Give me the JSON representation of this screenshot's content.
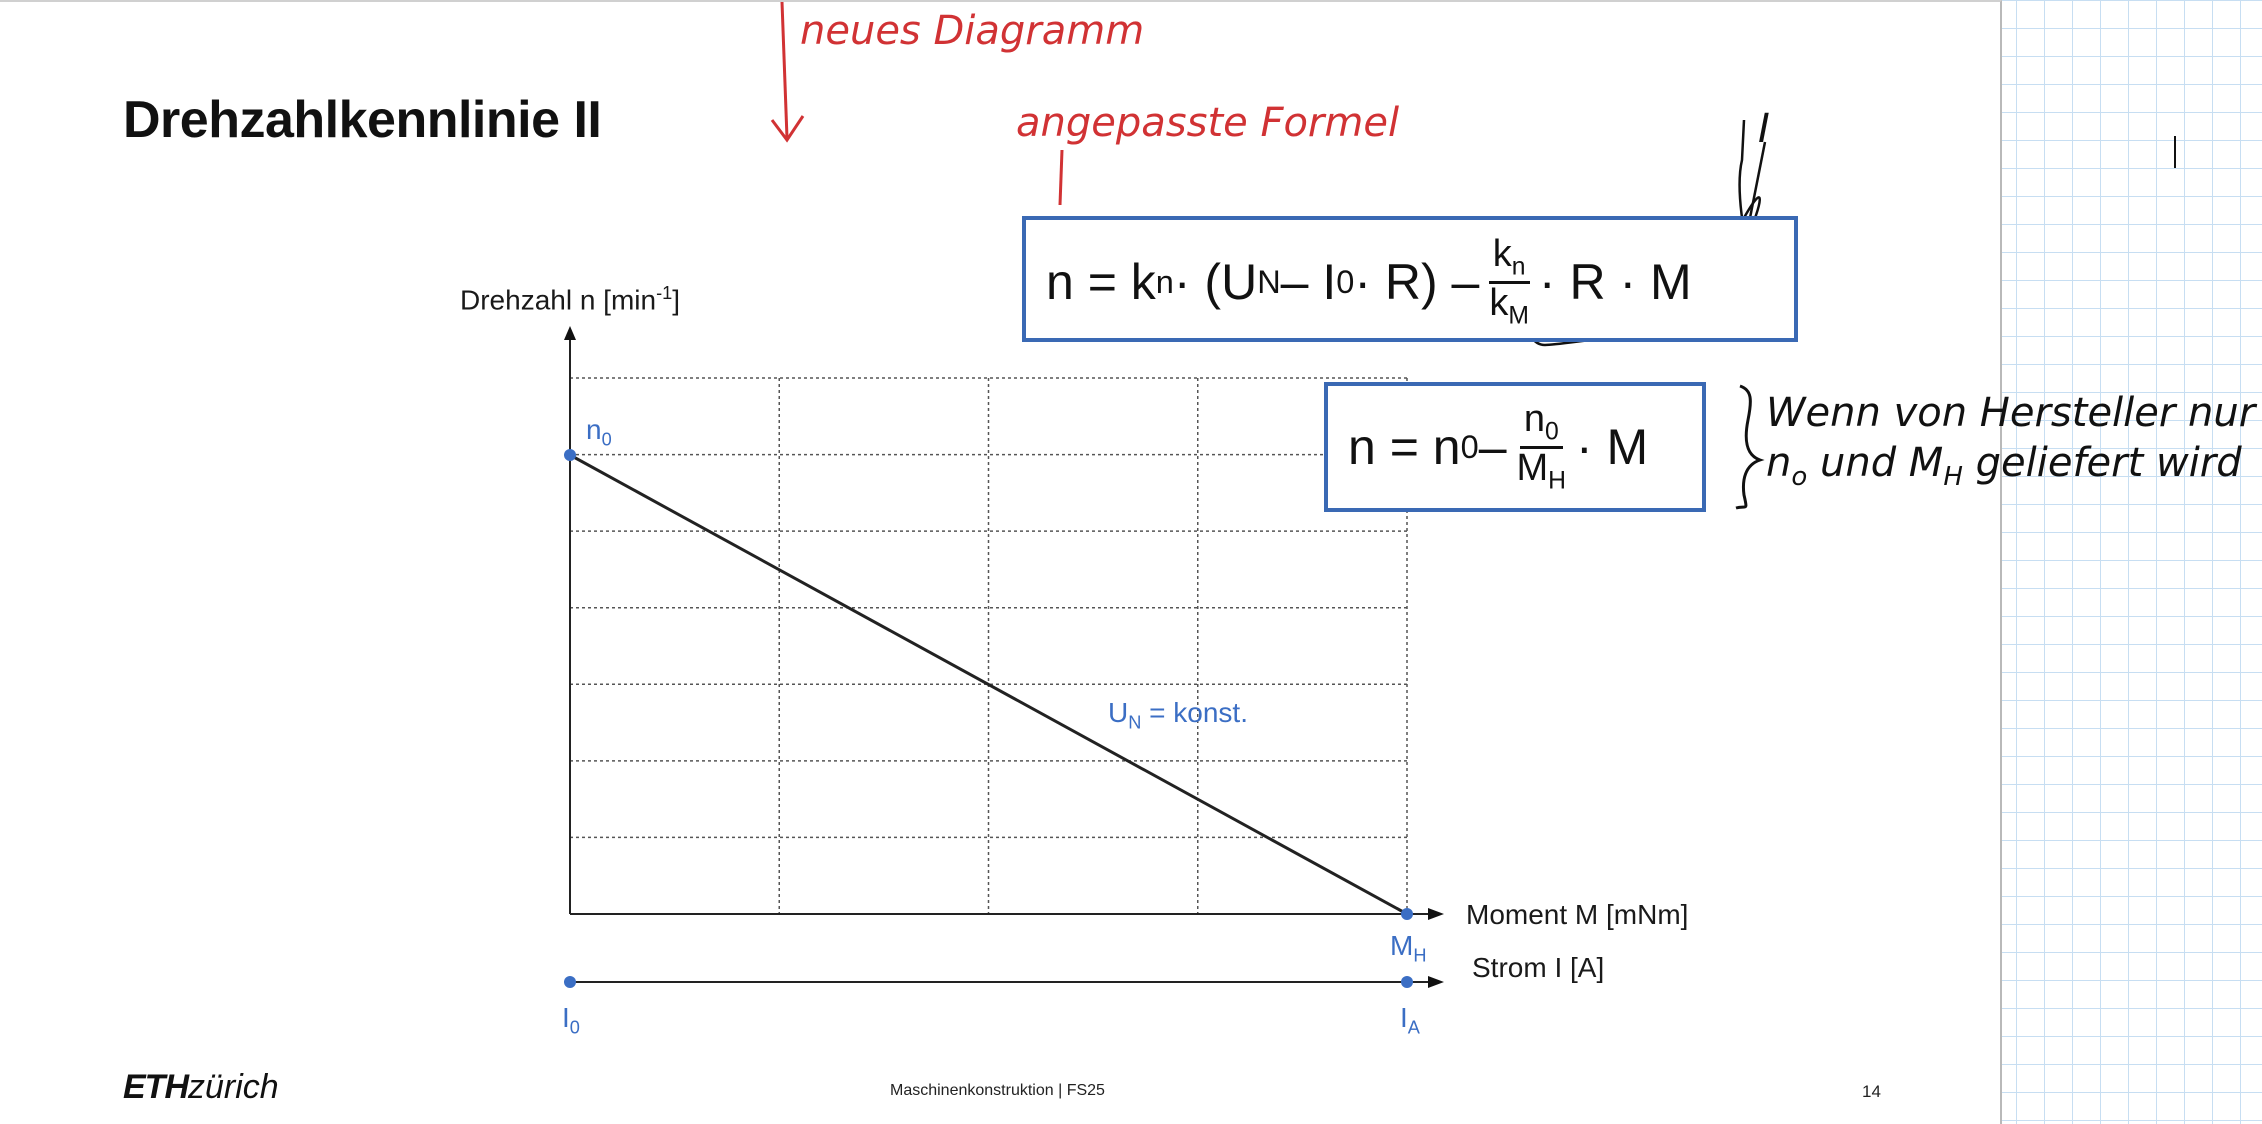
{
  "slide": {
    "title": "Drehzahlkennlinie II",
    "footer_logo_bold": "ETH",
    "footer_logo_rest": "zürich",
    "footer_course": "Maschinenkonstruktion | FS25",
    "page_number": "14"
  },
  "chart": {
    "y_axis_label": "Drehzahl n [min",
    "y_axis_label_sup": "-1",
    "y_axis_label_end": "]",
    "x_axis_label": "Moment M [mNm]",
    "x2_axis_label": "Strom I [A]",
    "n0_label": "n",
    "n0_sub": "0",
    "mh_label": "M",
    "mh_sub": "H",
    "i0_label": "I",
    "i0_sub": "0",
    "ia_label": "I",
    "ia_sub": "A",
    "line_label": "U",
    "line_label_sub": "N",
    "line_label_rest": " = konst.",
    "colors": {
      "line": "#222222",
      "points": "#3b6ec4",
      "grid": "#555555"
    }
  },
  "chart_data": {
    "type": "line",
    "series": [
      {
        "values": [
          [
            0,
            1
          ],
          [
            1,
            0
          ]
        ]
      }
    ],
    "x_points_labels": [
      "0",
      "M_H"
    ],
    "y_points_labels": [
      "n_0",
      "0"
    ],
    "grid": true
  },
  "formulas": {
    "f1_prefix": "n = k",
    "f1_prefix_sub": "n",
    "f1_mid": " · (U",
    "f1_mid_sub": "N",
    "f1_mid2": " – I",
    "f1_mid2_sub": "0",
    "f1_mid3": " · R) – ",
    "f1_frac_num": "k",
    "f1_frac_num_sub": "n",
    "f1_frac_den": "k",
    "f1_frac_den_sub": "M",
    "f1_suffix": "· R · M",
    "f2_prefix": "n = n",
    "f2_prefix_sub": "0",
    "f2_mid": " – ",
    "f2_frac_num": "n",
    "f2_frac_num_sub": "0",
    "f2_frac_den": "M",
    "f2_frac_den_sub": "H",
    "f2_suffix": "· M"
  },
  "annotations": {
    "neues_diagramm": "neues Diagramm",
    "angepasste_formel": "angepasste Formel",
    "i_label": "I",
    "note_line1": "Wenn von Hersteller nur",
    "note_line2_a": "n",
    "note_line2_a_sub": "o",
    "note_line2_b": " und M",
    "note_line2_b_sub": "H",
    "note_line2_c": " geliefert wird",
    "red_color": "#d13234"
  }
}
